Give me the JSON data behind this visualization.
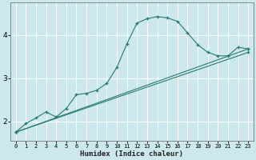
{
  "xlabel": "Humidex (Indice chaleur)",
  "ylabel": "",
  "bg_color": "#cce8ec",
  "line_color": "#2a7a6e",
  "grid_color": "#ffffff",
  "xlim": [
    -0.5,
    23.5
  ],
  "ylim": [
    1.55,
    4.75
  ],
  "xticks": [
    0,
    1,
    2,
    3,
    4,
    5,
    6,
    7,
    8,
    9,
    10,
    11,
    12,
    13,
    14,
    15,
    16,
    17,
    18,
    19,
    20,
    21,
    22,
    23
  ],
  "yticks": [
    2,
    3,
    4
  ],
  "curve1_x": [
    0,
    1,
    2,
    3,
    4,
    5,
    6,
    7,
    8,
    9,
    10,
    11,
    12,
    13,
    14,
    15,
    16,
    17,
    18,
    19,
    20,
    21,
    22,
    23
  ],
  "curve1_y": [
    1.75,
    1.95,
    2.08,
    2.22,
    2.1,
    2.3,
    2.62,
    2.65,
    2.72,
    2.88,
    3.25,
    3.8,
    4.28,
    4.38,
    4.43,
    4.4,
    4.32,
    4.05,
    3.78,
    3.6,
    3.52,
    3.52,
    3.72,
    3.68
  ],
  "curve2_x": [
    0,
    23
  ],
  "curve2_y": [
    1.75,
    3.68
  ],
  "curve3_x": [
    0,
    23
  ],
  "curve3_y": [
    1.75,
    3.6
  ],
  "figsize": [
    3.2,
    2.0
  ],
  "dpi": 100
}
